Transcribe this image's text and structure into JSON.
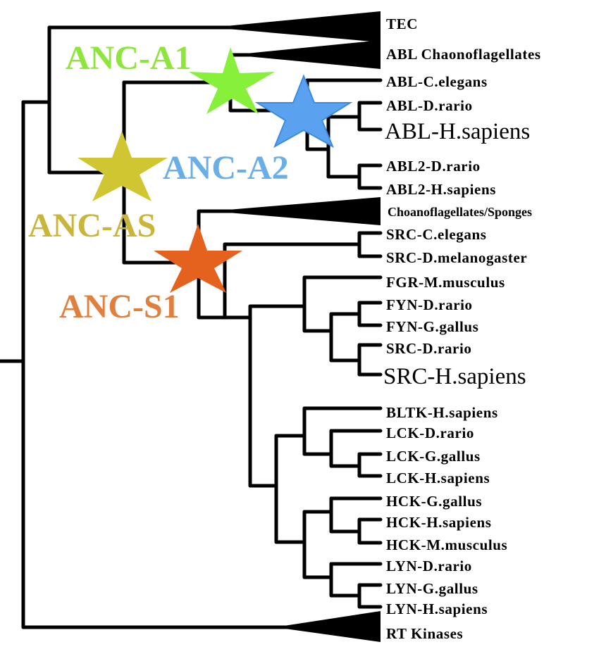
{
  "leaves": {
    "tec": "TEC",
    "abl_choano": "ABL Chaonoflagellates",
    "abl_c_elegans": "ABL-C.elegans",
    "abl_d_rario": "ABL-D.rario",
    "abl_h_sapiens": "ABL-H.sapiens",
    "abl2_d_rario": "ABL2-D.rario",
    "abl2_h_sapiens": "ABL2-H.sapiens",
    "choano_sponges": "Choanoflagellates/Sponges",
    "src_c_elegans": "SRC-C.elegans",
    "src_d_melanogaster": "SRC-D.melanogaster",
    "fgr_m_musculus": "FGR-M.musculus",
    "fyn_d_rario": "FYN-D.rario",
    "fyn_g_gallus": "FYN-G.gallus",
    "src_d_rario": "SRC-D.rario",
    "src_h_sapiens": "SRC-H.sapiens",
    "bltk_h_sapiens": "BLTK-H.sapiens",
    "lck_d_rario": "LCK-D.rario",
    "lck_g_gallus": "LCK-G.gallus",
    "lck_h_sapiens": "LCK-H.sapiens",
    "hck_g_gallus": "HCK-G.gallus",
    "hck_h_sapiens": "HCK-H.sapiens",
    "hck_m_musculus": "HCK-M.musculus",
    "lyn_d_rario": "LYN-D.rario",
    "lyn_g_gallus": "LYN-G.gallus",
    "lyn_h_sapiens": "LYN-H.sapiens",
    "rt_kinases": "RT Kinases"
  },
  "ancestors": {
    "anc_a1": "ANC-A1",
    "anc_a2": "ANC-A2",
    "anc_as": "ANC-AS",
    "anc_s1": "ANC-S1"
  },
  "colors": {
    "anc_a1": "#8ee63c",
    "anc_a2": "#6aaee8",
    "anc_as": "#c8b53a",
    "anc_s1": "#e0803f",
    "star_a1": "#86f03a",
    "star_a2": "#5aa2f0",
    "star_as": "#cfc631",
    "star_s1": "#e4611e",
    "abl_h_sapiens": "#1a17b8",
    "src_h_sapiens": "#b0181e"
  }
}
